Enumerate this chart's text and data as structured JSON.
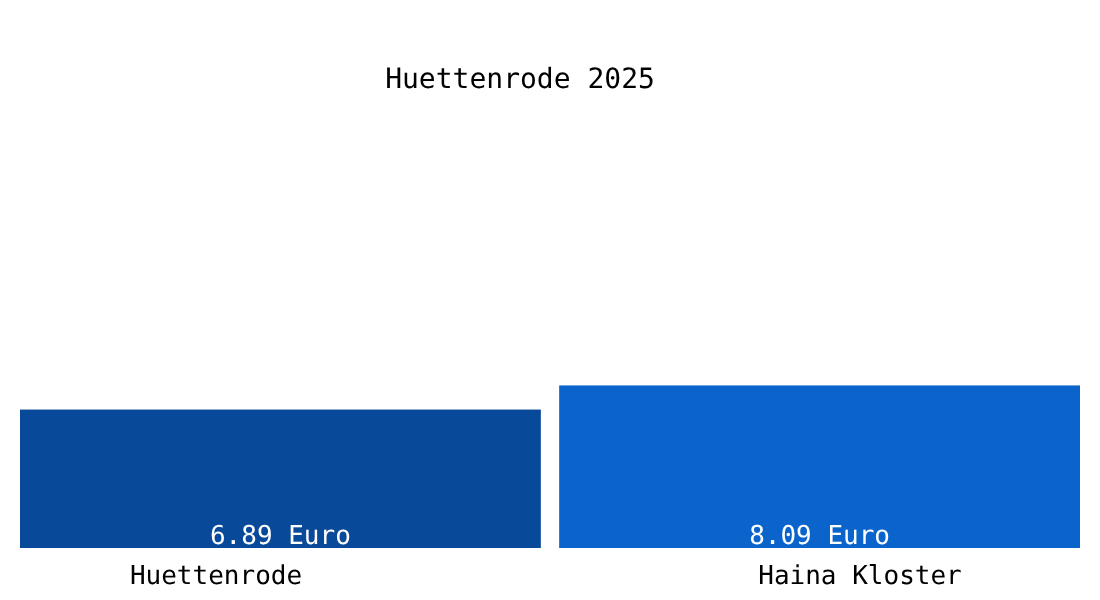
{
  "chart_data": {
    "type": "bar",
    "title": "Huettenrode 2025",
    "categories": [
      "Huettenrode",
      "Haina Kloster"
    ],
    "values": [
      6.89,
      8.09
    ],
    "colors": [
      "#084a99",
      "#0a64cc"
    ],
    "value_labels": [
      "6.89 Euro",
      "8.09 Euro"
    ]
  }
}
